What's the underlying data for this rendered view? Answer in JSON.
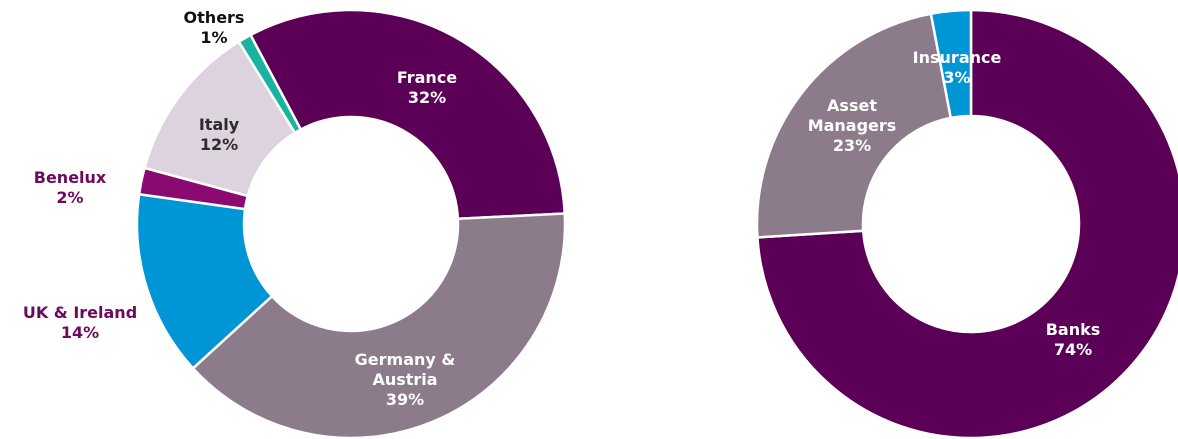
{
  "chart_data": [
    {
      "type": "donut",
      "categories": [
        "France",
        "Germany & Austria",
        "UK & Ireland",
        "Benelux",
        "Italy",
        "Others"
      ],
      "values": [
        32,
        39,
        14,
        2,
        12,
        1
      ],
      "value_labels": [
        "32%",
        "39%",
        "14%",
        "2%",
        "12%",
        "1%"
      ],
      "colors": [
        "#5c0057",
        "#8c7b8a",
        "#0096d6",
        "#8a0a72",
        "#ddd3de",
        "#1ab3a0"
      ]
    },
    {
      "type": "donut",
      "categories": [
        "Banks",
        "Asset Managers",
        "Insurance"
      ],
      "values": [
        74,
        23,
        3
      ],
      "value_labels": [
        "74%",
        "23%",
        "3%"
      ],
      "colors": [
        "#5c0057",
        "#8c7b8a",
        "#0096d6"
      ]
    }
  ]
}
